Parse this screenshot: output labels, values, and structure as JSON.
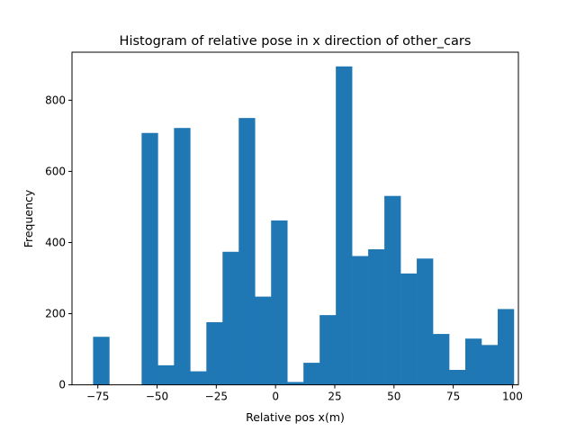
{
  "chart_data": {
    "type": "bar",
    "title": "Histogram of relative pose in x direction of other_cars",
    "xlabel": "Relative pos x(m)",
    "ylabel": "Frequency",
    "xlim": [
      -85.9,
      102.5
    ],
    "ylim": [
      0,
      935
    ],
    "bar_color": "#1f77b4",
    "bin_width": 6.83,
    "bins": [
      {
        "x0": -77.0,
        "x1": -70.17,
        "value": 135
      },
      {
        "x0": -70.17,
        "x1": -63.34,
        "value": 0
      },
      {
        "x0": -63.34,
        "x1": -56.51,
        "value": 0
      },
      {
        "x0": -56.51,
        "x1": -49.68,
        "value": 708
      },
      {
        "x0": -49.68,
        "x1": -42.85,
        "value": 55
      },
      {
        "x0": -42.85,
        "x1": -36.02,
        "value": 722
      },
      {
        "x0": -36.02,
        "x1": -29.19,
        "value": 38
      },
      {
        "x0": -29.19,
        "x1": -22.36,
        "value": 176
      },
      {
        "x0": -22.36,
        "x1": -15.53,
        "value": 374
      },
      {
        "x0": -15.53,
        "x1": -8.7,
        "value": 750
      },
      {
        "x0": -8.7,
        "x1": -1.87,
        "value": 248
      },
      {
        "x0": -1.87,
        "x1": 4.96,
        "value": 462
      },
      {
        "x0": 4.96,
        "x1": 11.79,
        "value": 8
      },
      {
        "x0": 11.79,
        "x1": 18.62,
        "value": 62
      },
      {
        "x0": 18.62,
        "x1": 25.45,
        "value": 196
      },
      {
        "x0": 25.45,
        "x1": 32.28,
        "value": 895
      },
      {
        "x0": 32.28,
        "x1": 39.11,
        "value": 362
      },
      {
        "x0": 39.11,
        "x1": 45.94,
        "value": 381
      },
      {
        "x0": 45.94,
        "x1": 52.77,
        "value": 531
      },
      {
        "x0": 52.77,
        "x1": 59.6,
        "value": 313
      },
      {
        "x0": 59.6,
        "x1": 66.43,
        "value": 355
      },
      {
        "x0": 66.43,
        "x1": 73.26,
        "value": 143
      },
      {
        "x0": 73.26,
        "x1": 80.09,
        "value": 42
      },
      {
        "x0": 80.09,
        "x1": 86.92,
        "value": 130
      },
      {
        "x0": 86.92,
        "x1": 93.75,
        "value": 112
      },
      {
        "x0": 93.75,
        "x1": 100.58,
        "value": 213
      }
    ],
    "xticks": [
      {
        "value": -75,
        "label": "−75"
      },
      {
        "value": -50,
        "label": "−50"
      },
      {
        "value": -25,
        "label": "−25"
      },
      {
        "value": 0,
        "label": "0"
      },
      {
        "value": 25,
        "label": "25"
      },
      {
        "value": 50,
        "label": "50"
      },
      {
        "value": 75,
        "label": "75"
      },
      {
        "value": 100,
        "label": "100"
      }
    ],
    "yticks": [
      {
        "value": 0,
        "label": "0"
      },
      {
        "value": 200,
        "label": "200"
      },
      {
        "value": 400,
        "label": "400"
      },
      {
        "value": 600,
        "label": "600"
      },
      {
        "value": 800,
        "label": "800"
      }
    ],
    "grid": false,
    "legend": "none"
  }
}
